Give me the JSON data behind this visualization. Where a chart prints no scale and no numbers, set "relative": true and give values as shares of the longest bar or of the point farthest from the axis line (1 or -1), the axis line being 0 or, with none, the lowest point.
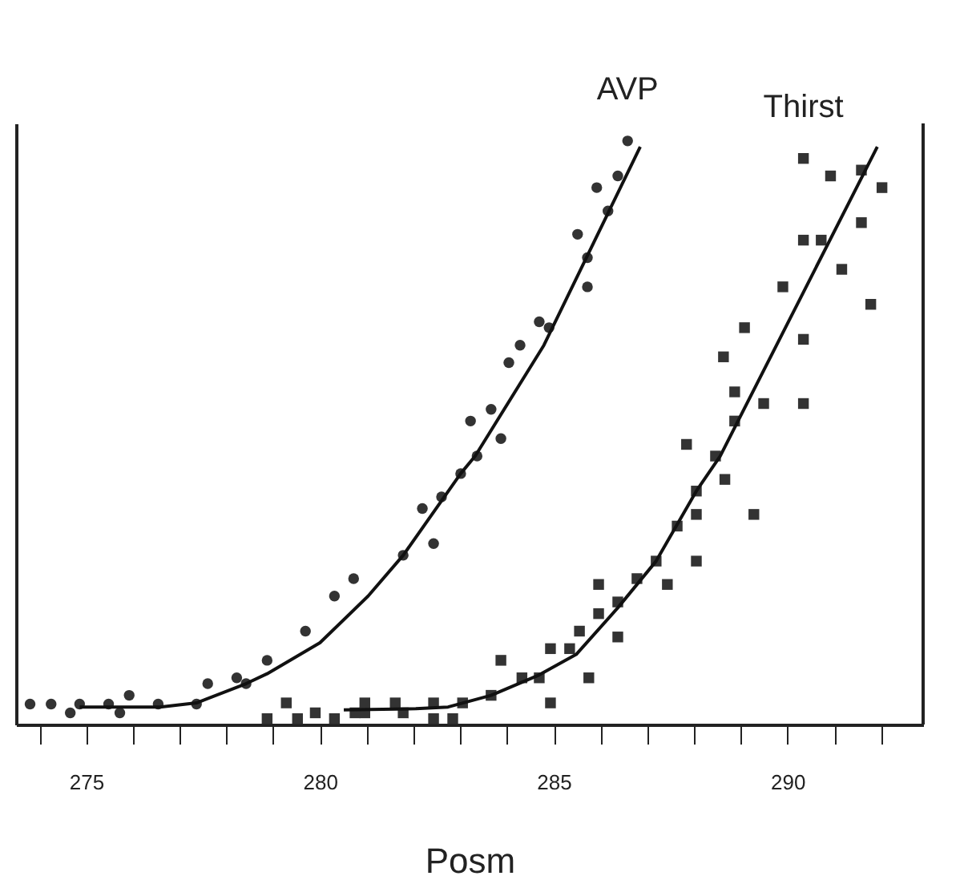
{
  "chart_data": {
    "type": "scatter",
    "relative": true,
    "xlabel": "Posm",
    "xlim": [
      273.5,
      292.9
    ],
    "xticks": [
      {
        "value": 274,
        "label": null
      },
      275,
      {
        "value": 276,
        "label": null
      },
      {
        "value": 277,
        "label": null
      },
      {
        "value": 278,
        "label": null
      },
      {
        "value": 279,
        "label": null
      },
      280,
      {
        "value": 281,
        "label": null
      },
      {
        "value": 282,
        "label": null
      },
      {
        "value": 283,
        "label": null
      },
      {
        "value": 284,
        "label": null
      },
      285,
      {
        "value": 286,
        "label": null
      },
      {
        "value": 287,
        "label": null
      },
      {
        "value": 288,
        "label": null
      },
      {
        "value": 289,
        "label": null
      },
      290,
      {
        "value": 291,
        "label": null
      },
      {
        "value": 292,
        "label": null
      }
    ],
    "grid": false,
    "series": [
      {
        "name": "AVP",
        "marker": "circle",
        "color": "#333333",
        "x": [
          273.8,
          274.25,
          274.66,
          274.86,
          275.48,
          275.72,
          275.92,
          276.54,
          277.36,
          277.6,
          278.22,
          278.42,
          278.87,
          279.69,
          280.31,
          280.72,
          281.78,
          282.19,
          282.43,
          282.6,
          283.01,
          283.36,
          283.87,
          283.22,
          283.66,
          284.04,
          284.28,
          284.69,
          284.9,
          285.72,
          285.72,
          285.51,
          286.16,
          285.92,
          286.37,
          286.58
        ],
        "values": [
          0.035,
          0.035,
          0.02,
          0.035,
          0.035,
          0.02,
          0.05,
          0.035,
          0.035,
          0.07,
          0.08,
          0.07,
          0.11,
          0.16,
          0.22,
          0.25,
          0.29,
          0.37,
          0.31,
          0.39,
          0.43,
          0.46,
          0.49,
          0.52,
          0.54,
          0.62,
          0.65,
          0.69,
          0.68,
          0.75,
          0.8,
          0.84,
          0.88,
          0.92,
          0.94,
          1.0
        ]
      },
      {
        "name": "Thirst",
        "marker": "square",
        "color": "#333333",
        "x": [
          278.87,
          279.28,
          279.52,
          279.9,
          280.31,
          280.75,
          280.96,
          280.96,
          281.61,
          281.78,
          282.43,
          282.43,
          282.84,
          283.05,
          283.66,
          283.87,
          284.32,
          284.69,
          284.93,
          284.93,
          285.34,
          285.55,
          285.75,
          285.96,
          285.96,
          286.37,
          286.37,
          286.78,
          287.19,
          287.43,
          287.64,
          288.05,
          288.05,
          288.05,
          287.84,
          288.46,
          288.66,
          289.28,
          288.87,
          288.87,
          288.63,
          289.08,
          289.49,
          290.34,
          290.34,
          289.9,
          290.34,
          290.72,
          291.16,
          291.78,
          291.58,
          290.34,
          290.92,
          291.58,
          292.02
        ],
        "values": [
          0.01,
          0.037,
          0.01,
          0.02,
          0.01,
          0.02,
          0.02,
          0.037,
          0.037,
          0.02,
          0.037,
          0.01,
          0.01,
          0.037,
          0.05,
          0.11,
          0.08,
          0.08,
          0.037,
          0.13,
          0.13,
          0.16,
          0.08,
          0.19,
          0.24,
          0.21,
          0.15,
          0.25,
          0.28,
          0.24,
          0.34,
          0.36,
          0.28,
          0.4,
          0.48,
          0.46,
          0.42,
          0.36,
          0.52,
          0.57,
          0.63,
          0.68,
          0.55,
          0.55,
          0.66,
          0.75,
          0.83,
          0.83,
          0.78,
          0.72,
          0.86,
          0.97,
          0.94,
          0.95,
          0.92
        ]
      },
      {
        "type": "line",
        "marker": "none",
        "line_style": "solid",
        "color": "#111111",
        "x": [
          274.86,
          276.58,
          277.36,
          278.42,
          278.87,
          280.0,
          281.03,
          281.78,
          283.01,
          283.32,
          284.79,
          286.85
        ],
        "values": [
          0.03,
          0.03,
          0.037,
          0.07,
          0.087,
          0.14,
          0.22,
          0.29,
          0.43,
          0.46,
          0.65,
          0.99
        ]
      },
      {
        "type": "line",
        "marker": "none",
        "line_style": "solid",
        "color": "#111111",
        "x": [
          280.51,
          282.05,
          282.74,
          283.66,
          284.69,
          285.48,
          286.37,
          287.19,
          288.05,
          288.56,
          291.92
        ],
        "values": [
          0.025,
          0.027,
          0.03,
          0.05,
          0.085,
          0.12,
          0.2,
          0.28,
          0.4,
          0.46,
          0.99
        ]
      }
    ]
  }
}
